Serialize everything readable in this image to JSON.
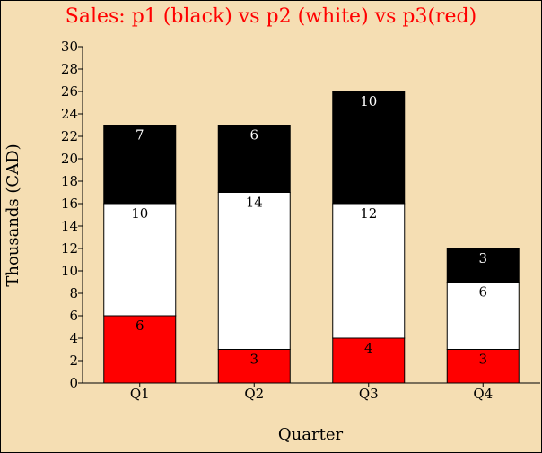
{
  "chart_data": {
    "type": "bar",
    "stacked": true,
    "title": "Sales: p1 (black) vs p2 (white) vs p3(red)",
    "xlabel": "Quarter",
    "ylabel": "Thousands (CAD)",
    "categories": [
      "Q1",
      "Q2",
      "Q3",
      "Q4"
    ],
    "ylim": [
      0,
      30
    ],
    "yticks": [
      "0",
      "2",
      "4",
      "6",
      "8",
      "10",
      "12",
      "14",
      "16",
      "18",
      "20",
      "22",
      "24",
      "26",
      "28",
      "30"
    ],
    "grid": false,
    "series": [
      {
        "color": "#ff0000",
        "label_color": "#000000",
        "values": [
          6,
          3,
          4,
          3
        ]
      },
      {
        "color": "#ffffff",
        "label_color": "#000000",
        "values": [
          10,
          14,
          12,
          6
        ]
      },
      {
        "color": "#000000",
        "label_color": "#ffffff",
        "values": [
          7,
          6,
          10,
          3
        ]
      }
    ]
  },
  "colors": {
    "background": "#f5deb3",
    "title": "#ff0000",
    "text": "#000000",
    "bar_stroke": "#000000"
  }
}
